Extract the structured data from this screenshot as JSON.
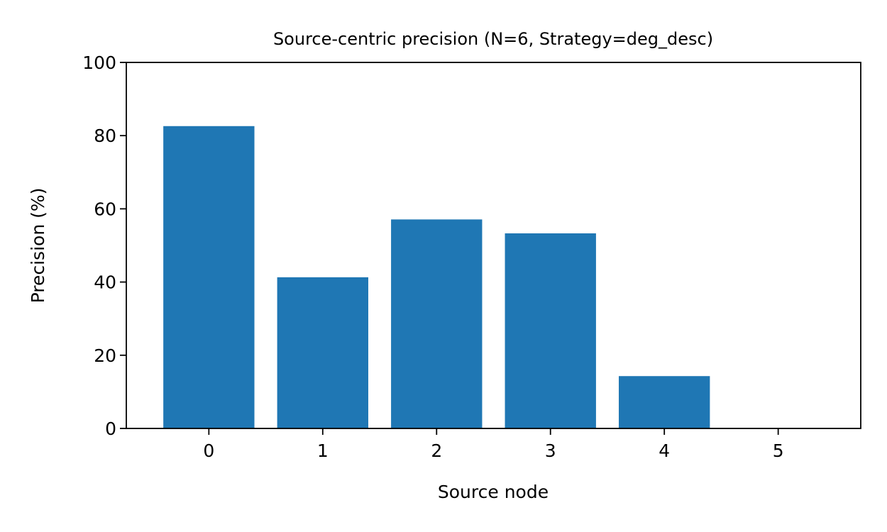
{
  "chart_data": {
    "type": "bar",
    "title": "Source-centric precision (N=6, Strategy=deg_desc)",
    "xlabel": "Source node",
    "ylabel": "Precision (%)",
    "categories": [
      "0",
      "1",
      "2",
      "3",
      "4",
      "5"
    ],
    "values": [
      82.6,
      41.3,
      57.1,
      53.3,
      14.3,
      0
    ],
    "ylim": [
      0,
      100
    ],
    "yticks": [
      0,
      20,
      40,
      60,
      80,
      100
    ],
    "grid": false,
    "bar_color": "#1f77b4"
  }
}
